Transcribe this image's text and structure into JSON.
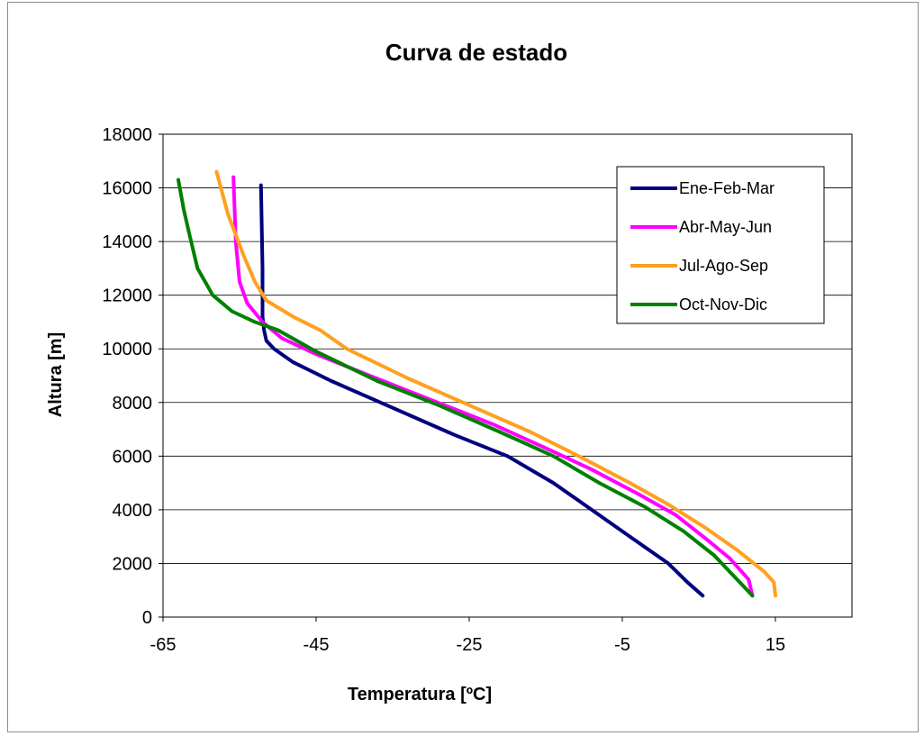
{
  "chart_data": {
    "type": "line",
    "title": "Curva de estado",
    "xlabel": "Temperatura [ºC]",
    "ylabel": "Altura [m]",
    "xlim": [
      -65,
      25
    ],
    "ylim": [
      0,
      18000
    ],
    "xticks": [
      -65,
      -45,
      -25,
      -5,
      15
    ],
    "yticks": [
      0,
      2000,
      4000,
      6000,
      8000,
      10000,
      12000,
      14000,
      16000,
      18000
    ],
    "grid": "horizontal",
    "legend_position": "top-right",
    "series": [
      {
        "name": "Ene-Feb-Mar",
        "color": "#000080",
        "points": [
          [
            5.5,
            800
          ],
          [
            3.5,
            1300
          ],
          [
            1,
            2000
          ],
          [
            -2,
            2600
          ],
          [
            -5,
            3200
          ],
          [
            -9,
            4000
          ],
          [
            -14,
            5000
          ],
          [
            -20,
            6000
          ],
          [
            -27,
            6800
          ],
          [
            -35,
            7800
          ],
          [
            -43,
            8800
          ],
          [
            -48,
            9500
          ],
          [
            -50.5,
            10000
          ],
          [
            -51.5,
            10300
          ],
          [
            -51.8,
            10700
          ],
          [
            -52,
            11200
          ],
          [
            -52,
            13000
          ],
          [
            -52.2,
            16100
          ]
        ]
      },
      {
        "name": "Abr-May-Jun",
        "color": "#ff00ff",
        "points": [
          [
            12,
            800
          ],
          [
            11.5,
            1400
          ],
          [
            9,
            2200
          ],
          [
            6,
            2900
          ],
          [
            2,
            3800
          ],
          [
            -3,
            4600
          ],
          [
            -9,
            5500
          ],
          [
            -15,
            6300
          ],
          [
            -22,
            7200
          ],
          [
            -30,
            8100
          ],
          [
            -38,
            9000
          ],
          [
            -45,
            9800
          ],
          [
            -49.5,
            10400
          ],
          [
            -52,
            11000
          ],
          [
            -54,
            11700
          ],
          [
            -55,
            12500
          ],
          [
            -55.5,
            14000
          ],
          [
            -55.8,
            16400
          ]
        ]
      },
      {
        "name": "Jul-Ago-Sep",
        "color": "#ffa020",
        "points": [
          [
            15,
            800
          ],
          [
            14.8,
            1300
          ],
          [
            13.5,
            1700
          ],
          [
            10,
            2500
          ],
          [
            6,
            3300
          ],
          [
            1,
            4200
          ],
          [
            -4,
            5000
          ],
          [
            -10,
            5900
          ],
          [
            -17,
            6900
          ],
          [
            -25,
            7900
          ],
          [
            -33,
            8900
          ],
          [
            -41,
            10000
          ],
          [
            -44.5,
            10700
          ],
          [
            -48,
            11200
          ],
          [
            -51.5,
            11800
          ],
          [
            -53,
            12500
          ],
          [
            -54.5,
            13500
          ],
          [
            -56.5,
            15000
          ],
          [
            -58,
            16600
          ]
        ]
      },
      {
        "name": "Oct-Nov-Dic",
        "color": "#008000",
        "points": [
          [
            12,
            800
          ],
          [
            10,
            1400
          ],
          [
            7,
            2300
          ],
          [
            3,
            3200
          ],
          [
            -2,
            4100
          ],
          [
            -8,
            5000
          ],
          [
            -14,
            6000
          ],
          [
            -21,
            6900
          ],
          [
            -29,
            7900
          ],
          [
            -37,
            8800
          ],
          [
            -45,
            9900
          ],
          [
            -50,
            10700
          ],
          [
            -53,
            11000
          ],
          [
            -56,
            11400
          ],
          [
            -58.5,
            12000
          ],
          [
            -60.5,
            13000
          ],
          [
            -61.5,
            14200
          ],
          [
            -62.3,
            15200
          ],
          [
            -63,
            16300
          ]
        ]
      }
    ]
  }
}
